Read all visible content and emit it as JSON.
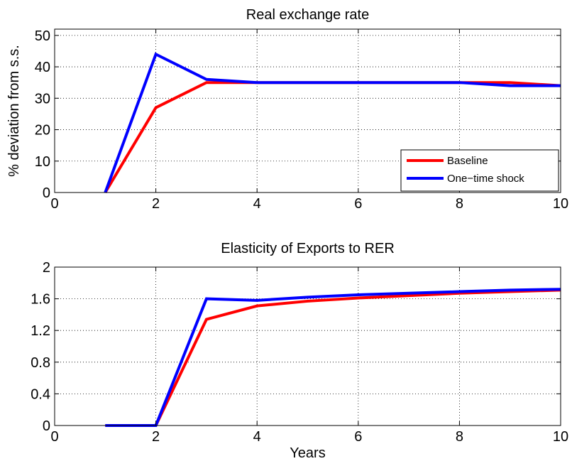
{
  "chart_data": [
    {
      "type": "line",
      "title": "Real exchange rate",
      "xlabel": "",
      "ylabel": "% deviation from s.s.",
      "xlim": [
        0,
        10
      ],
      "ylim": [
        0,
        52
      ],
      "xticks": [
        0,
        2,
        4,
        6,
        8,
        10
      ],
      "yticks": [
        0,
        10,
        20,
        30,
        40,
        50
      ],
      "grid": true,
      "legend_position": "bottom-right",
      "x": [
        1,
        2,
        3,
        4,
        5,
        6,
        7,
        8,
        9,
        10
      ],
      "series": [
        {
          "name": "Baseline",
          "color": "#ff0000",
          "values": [
            0,
            27,
            35,
            35,
            35,
            35,
            35,
            35,
            35,
            34
          ]
        },
        {
          "name": "One−time shock",
          "color": "#0000ff",
          "values": [
            0,
            44,
            36,
            35,
            35,
            35,
            35,
            35,
            34,
            34
          ]
        }
      ]
    },
    {
      "type": "line",
      "title": "Elasticity of Exports to RER",
      "xlabel": "Years",
      "ylabel": "",
      "xlim": [
        0,
        10
      ],
      "ylim": [
        0,
        2
      ],
      "xticks": [
        0,
        2,
        4,
        6,
        8,
        10
      ],
      "yticks": [
        0,
        0.4,
        0.8,
        1.2,
        1.6,
        2
      ],
      "ytick_labels": [
        "0",
        "0.4",
        "0.8",
        "1.2",
        "1.6",
        "2"
      ],
      "grid": true,
      "x": [
        1,
        2,
        3,
        4,
        5,
        6,
        7,
        8,
        9,
        10
      ],
      "series": [
        {
          "color": "#ff0000",
          "values": [
            0,
            0,
            1.34,
            1.51,
            1.57,
            1.61,
            1.64,
            1.67,
            1.69,
            1.71
          ]
        },
        {
          "color": "#0000ff",
          "values": [
            0,
            0,
            1.6,
            1.58,
            1.62,
            1.65,
            1.67,
            1.69,
            1.71,
            1.72
          ]
        }
      ]
    }
  ]
}
